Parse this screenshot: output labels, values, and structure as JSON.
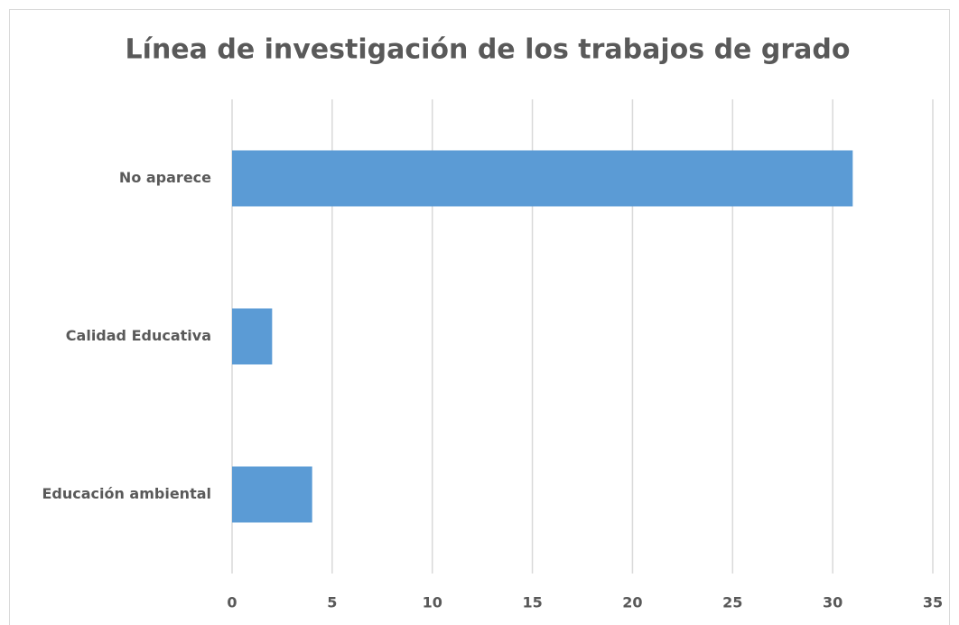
{
  "chart_data": {
    "type": "bar",
    "orientation": "horizontal",
    "title": "Línea de investigación de los trabajos de grado",
    "categories": [
      "No aparece",
      "Calidad Educativa",
      "Educación ambiental"
    ],
    "values": [
      31,
      2,
      4
    ],
    "color": "#5b9bd5",
    "xlim": [
      0,
      35
    ],
    "xticks": [
      0,
      5,
      10,
      15,
      20,
      25,
      30,
      35
    ],
    "grid": true
  }
}
